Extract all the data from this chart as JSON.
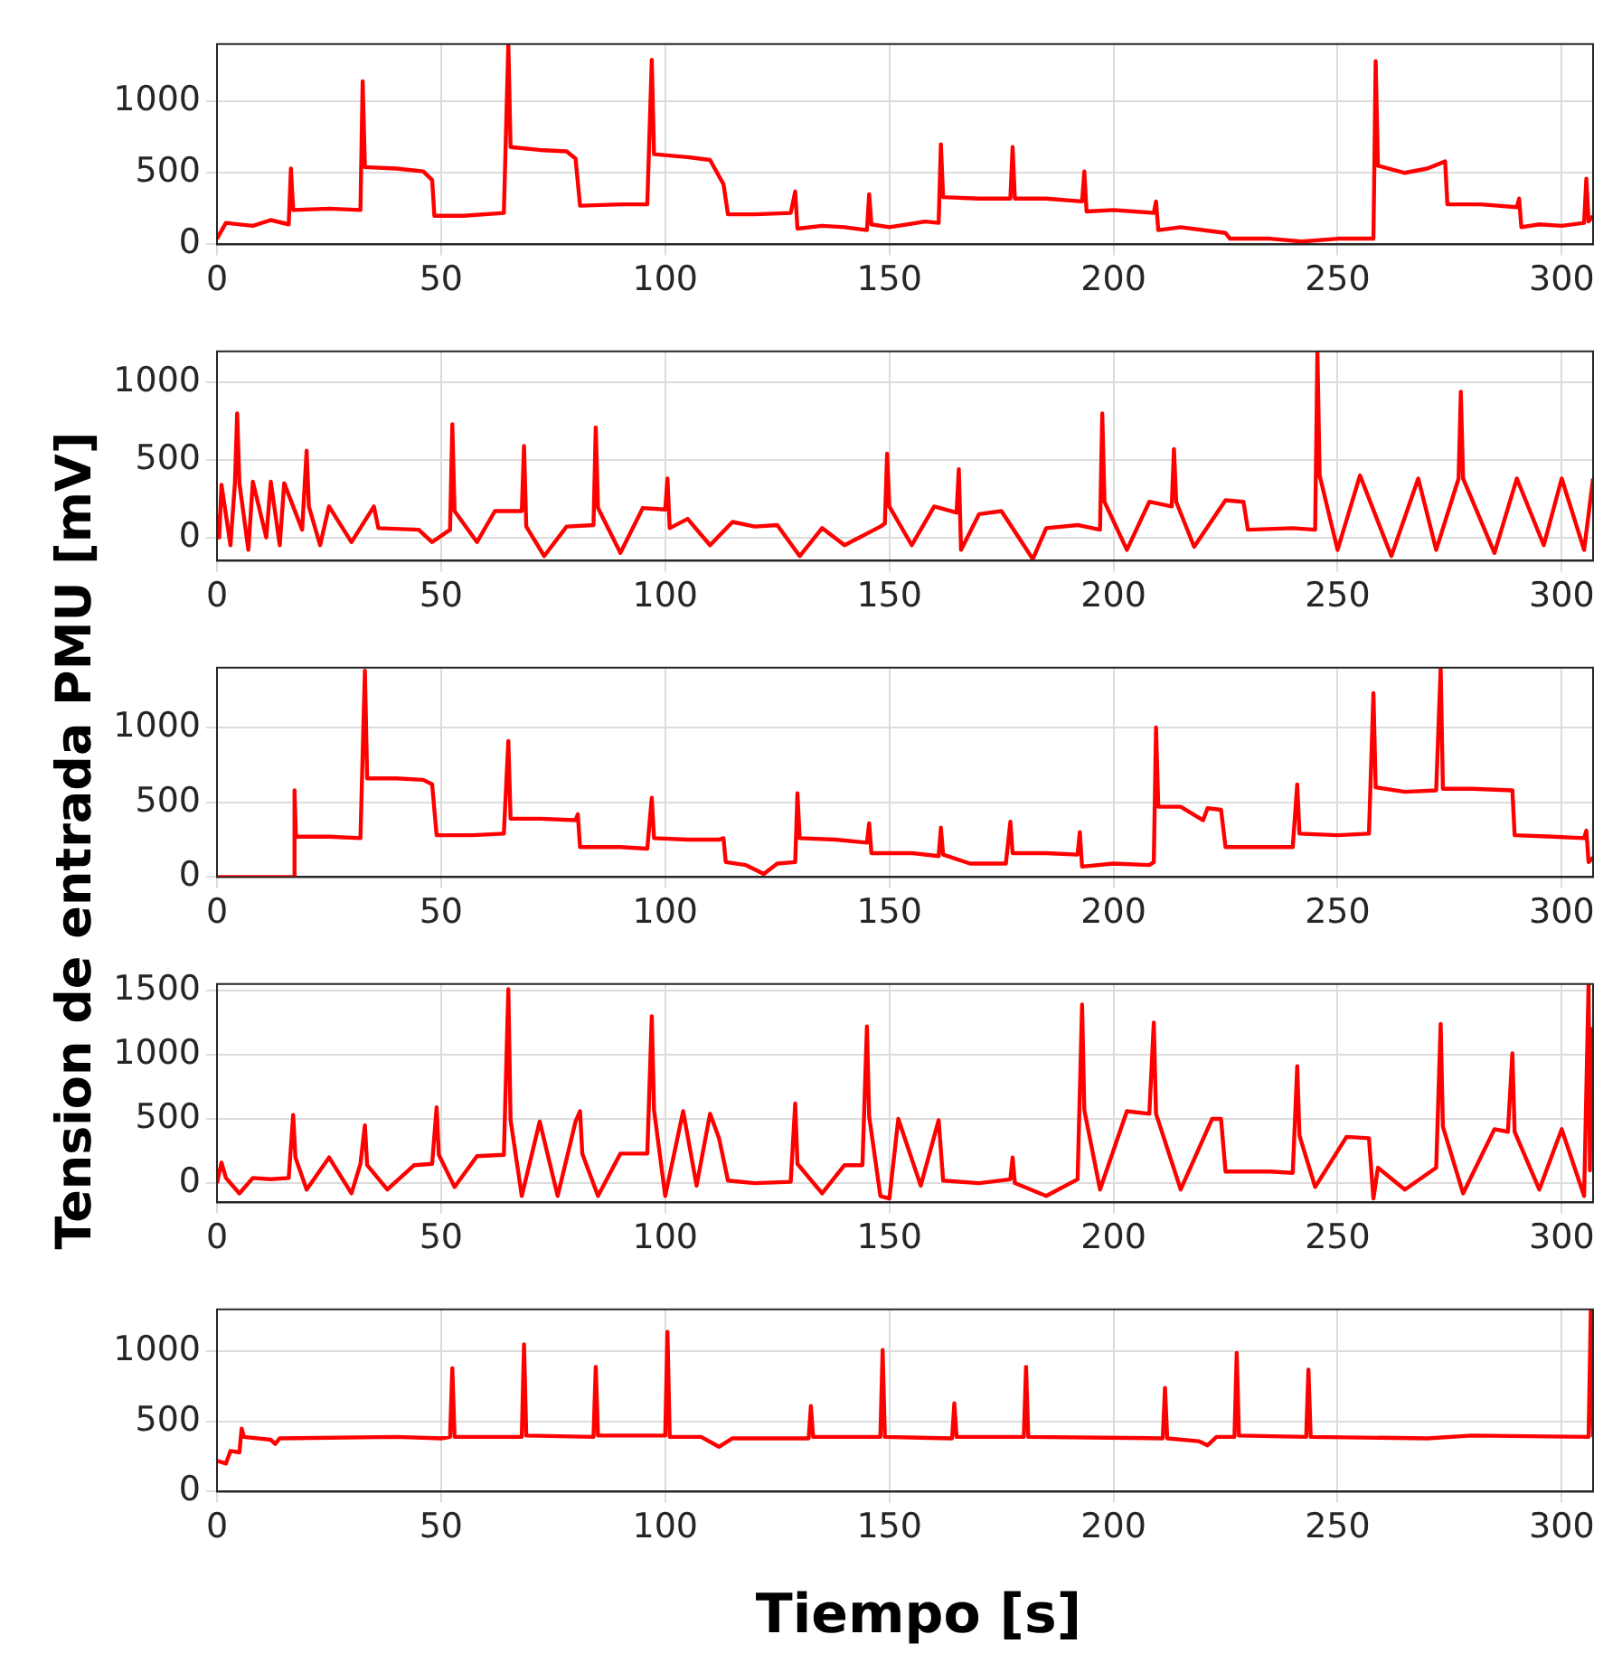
{
  "chart_data": [
    {
      "type": "line",
      "color": "#ff0000",
      "grid": true,
      "xlim": [
        0,
        307
      ],
      "xticks": [
        0,
        50,
        100,
        150,
        200,
        250,
        300
      ],
      "ylim": [
        0,
        1400
      ],
      "yticks": [
        0,
        500,
        1000
      ],
      "x": [
        0,
        2,
        8,
        12,
        16,
        16.5,
        17,
        25,
        32,
        32.5,
        33,
        40,
        46,
        48,
        48.5,
        55,
        64,
        65,
        65.5,
        72,
        78,
        80,
        81,
        90,
        96,
        97,
        97.5,
        105,
        110,
        113,
        114,
        120,
        128,
        129,
        129.5,
        135,
        140,
        145,
        145.5,
        146,
        150,
        158,
        161,
        161.5,
        162,
        170,
        177,
        177.5,
        178,
        185,
        193,
        193.5,
        194,
        200,
        209,
        209.5,
        210,
        215,
        225,
        226,
        235,
        242,
        250,
        258,
        258.5,
        259,
        265,
        270,
        274,
        274.5,
        282,
        290,
        290.5,
        291,
        295,
        300,
        305,
        305.5,
        306,
        307
      ],
      "values": [
        40,
        150,
        130,
        170,
        140,
        530,
        240,
        250,
        240,
        1140,
        540,
        530,
        510,
        450,
        200,
        200,
        220,
        1400,
        680,
        660,
        650,
        600,
        270,
        280,
        280,
        1290,
        630,
        610,
        590,
        420,
        210,
        210,
        220,
        370,
        110,
        130,
        120,
        100,
        350,
        140,
        120,
        160,
        150,
        700,
        330,
        320,
        320,
        680,
        320,
        320,
        300,
        510,
        230,
        240,
        220,
        300,
        100,
        120,
        80,
        40,
        40,
        20,
        40,
        40,
        1280,
        550,
        500,
        530,
        580,
        280,
        280,
        260,
        320,
        120,
        140,
        130,
        150,
        460,
        160,
        200
      ]
    },
    {
      "type": "line",
      "color": "#ff0000",
      "grid": true,
      "xlim": [
        0,
        307
      ],
      "xticks": [
        0,
        50,
        100,
        150,
        200,
        250,
        300
      ],
      "ylim": [
        -150,
        1200
      ],
      "yticks": [
        0,
        500,
        1000
      ],
      "x": [
        0,
        0.5,
        1,
        3,
        4,
        4.5,
        5,
        7,
        8,
        11,
        12,
        14,
        15,
        19,
        20,
        20.5,
        23,
        25,
        30,
        35,
        36,
        45,
        48,
        52,
        52.5,
        53,
        58,
        62,
        68,
        68.5,
        69,
        73,
        78,
        84,
        84.5,
        85,
        90,
        95,
        100,
        100.5,
        101,
        105,
        110,
        115,
        120,
        125,
        130,
        135,
        140,
        148,
        149,
        149.5,
        150,
        155,
        160,
        165,
        165.5,
        166,
        170,
        175,
        180,
        182,
        185,
        192,
        197,
        197.5,
        198,
        203,
        208,
        213,
        213.5,
        214,
        218,
        225,
        229,
        230,
        240,
        245,
        245.5,
        246,
        250,
        255,
        262,
        268,
        272,
        277,
        277.5,
        278,
        285,
        290,
        296,
        300,
        305,
        307
      ],
      "values": [
        150,
        0,
        340,
        -50,
        350,
        800,
        350,
        -80,
        360,
        0,
        360,
        -50,
        350,
        50,
        560,
        200,
        -50,
        200,
        -30,
        200,
        60,
        50,
        -30,
        50,
        730,
        170,
        -30,
        170,
        170,
        590,
        70,
        -120,
        70,
        80,
        710,
        190,
        -100,
        190,
        180,
        380,
        60,
        120,
        -50,
        100,
        70,
        80,
        -120,
        60,
        -50,
        70,
        90,
        540,
        200,
        -50,
        200,
        160,
        440,
        -80,
        150,
        170,
        -50,
        -140,
        60,
        80,
        50,
        800,
        230,
        -80,
        230,
        200,
        570,
        230,
        -60,
        240,
        230,
        50,
        60,
        50,
        1200,
        400,
        -80,
        400,
        -120,
        380,
        -80,
        380,
        940,
        380,
        -100,
        380,
        -50,
        380,
        -80,
        380
      ]
    },
    {
      "type": "line",
      "color": "#ff0000",
      "grid": true,
      "xlim": [
        0,
        307
      ],
      "xticks": [
        0,
        50,
        100,
        150,
        200,
        250,
        300
      ],
      "ylim": [
        0,
        1400
      ],
      "yticks": [
        0,
        500,
        1000
      ],
      "ylabel": "Tension de entrada PMU [mV]",
      "x": [
        0,
        10,
        17,
        17.3,
        17.6,
        25,
        32,
        33,
        33.5,
        40,
        46,
        48,
        49,
        57,
        64,
        65,
        65.5,
        72,
        80,
        80.5,
        81,
        90,
        96,
        97,
        97.5,
        105,
        112,
        113,
        113.5,
        118,
        122,
        125,
        129,
        129.5,
        130,
        138,
        145,
        145.5,
        146,
        155,
        161,
        161.5,
        162,
        168,
        176,
        177,
        177.5,
        185,
        192,
        192.5,
        193,
        200,
        208,
        209,
        209.5,
        210,
        215,
        220,
        221,
        224,
        225,
        232,
        240,
        241,
        241.5,
        250,
        257,
        258,
        258.5,
        265,
        272,
        273,
        273.5,
        280,
        289,
        289.5,
        298,
        305,
        305.5,
        306,
        307
      ],
      "values": [
        0,
        0,
        0,
        580,
        270,
        270,
        260,
        1380,
        660,
        660,
        650,
        620,
        280,
        280,
        290,
        910,
        390,
        390,
        380,
        420,
        200,
        200,
        190,
        530,
        260,
        250,
        250,
        260,
        100,
        80,
        20,
        90,
        100,
        560,
        260,
        250,
        230,
        360,
        160,
        160,
        140,
        330,
        150,
        90,
        90,
        370,
        160,
        160,
        150,
        300,
        70,
        90,
        80,
        100,
        1000,
        470,
        470,
        380,
        460,
        450,
        200,
        200,
        200,
        620,
        290,
        280,
        290,
        1230,
        600,
        570,
        580,
        1400,
        590,
        590,
        580,
        280,
        270,
        260,
        310,
        100,
        130
      ]
    },
    {
      "type": "line",
      "color": "#ff0000",
      "grid": true,
      "xlim": [
        0,
        307
      ],
      "xticks": [
        0,
        50,
        100,
        150,
        200,
        250,
        300
      ],
      "ylim": [
        -150,
        1550
      ],
      "yticks": [
        0,
        500,
        1000,
        1500
      ],
      "x": [
        0,
        1,
        2,
        5,
        8,
        12,
        16,
        17,
        17.5,
        20,
        25,
        30,
        32,
        33,
        33.5,
        38,
        44,
        48,
        49,
        49.5,
        53,
        58,
        64,
        65,
        65.5,
        68,
        72,
        76,
        80,
        81,
        81.5,
        85,
        90,
        96,
        97,
        97.5,
        100,
        104,
        107,
        110,
        112,
        114,
        120,
        128,
        129,
        129.5,
        135,
        140,
        144,
        145,
        145.5,
        148,
        150,
        152,
        157,
        161,
        162,
        170,
        177,
        177.5,
        178,
        185,
        192,
        193,
        193.5,
        197,
        203,
        208,
        209,
        209.5,
        215,
        222,
        224,
        225,
        235,
        240,
        241,
        241.5,
        245,
        252,
        257,
        258,
        259,
        265,
        272,
        273,
        273.5,
        278,
        285,
        288,
        289,
        289.5,
        295,
        300,
        305,
        306,
        306.3,
        306.6,
        307
      ],
      "values": [
        0,
        160,
        40,
        -80,
        40,
        30,
        40,
        530,
        200,
        -50,
        200,
        -80,
        150,
        450,
        140,
        -50,
        140,
        150,
        590,
        220,
        -30,
        210,
        220,
        1510,
        490,
        -100,
        480,
        -100,
        480,
        560,
        230,
        -100,
        230,
        230,
        1300,
        570,
        -100,
        560,
        -20,
        540,
        350,
        20,
        0,
        10,
        620,
        150,
        -80,
        140,
        140,
        1220,
        520,
        -100,
        -120,
        500,
        -20,
        490,
        20,
        0,
        30,
        200,
        0,
        -100,
        30,
        1390,
        570,
        -50,
        560,
        540,
        1250,
        540,
        -50,
        500,
        500,
        90,
        90,
        80,
        910,
        370,
        -30,
        360,
        350,
        -120,
        120,
        -50,
        120,
        1240,
        440,
        -80,
        420,
        400,
        1010,
        400,
        -50,
        420,
        -100,
        1550,
        100,
        1200,
        570
      ]
    },
    {
      "type": "line",
      "color": "#ff0000",
      "grid": true,
      "xlim": [
        0,
        307
      ],
      "xticks": [
        0,
        50,
        100,
        150,
        200,
        250,
        300
      ],
      "ylim": [
        0,
        1300
      ],
      "yticks": [
        0,
        500,
        1000
      ],
      "xlabel": "Tiempo [s]",
      "x": [
        0,
        2,
        3,
        5,
        5.5,
        6,
        12,
        13,
        14,
        40,
        50,
        52,
        52.5,
        53,
        68,
        68.5,
        69,
        84,
        84.5,
        85,
        100,
        100.5,
        101,
        108,
        112,
        115,
        132,
        132.5,
        133,
        148,
        148.5,
        149,
        164,
        164.5,
        165,
        180,
        180.5,
        181,
        211,
        211.5,
        212,
        219,
        221,
        223,
        227,
        227.5,
        228,
        243,
        243.5,
        244,
        270,
        280,
        306,
        306.5,
        307
      ],
      "values": [
        220,
        200,
        290,
        280,
        450,
        390,
        370,
        340,
        380,
        390,
        380,
        390,
        880,
        390,
        390,
        1050,
        400,
        390,
        890,
        400,
        400,
        1140,
        390,
        390,
        320,
        380,
        380,
        610,
        390,
        390,
        1010,
        390,
        380,
        630,
        390,
        390,
        890,
        390,
        380,
        740,
        380,
        360,
        330,
        390,
        390,
        990,
        400,
        390,
        870,
        390,
        380,
        400,
        390,
        1300,
        390
      ]
    }
  ]
}
